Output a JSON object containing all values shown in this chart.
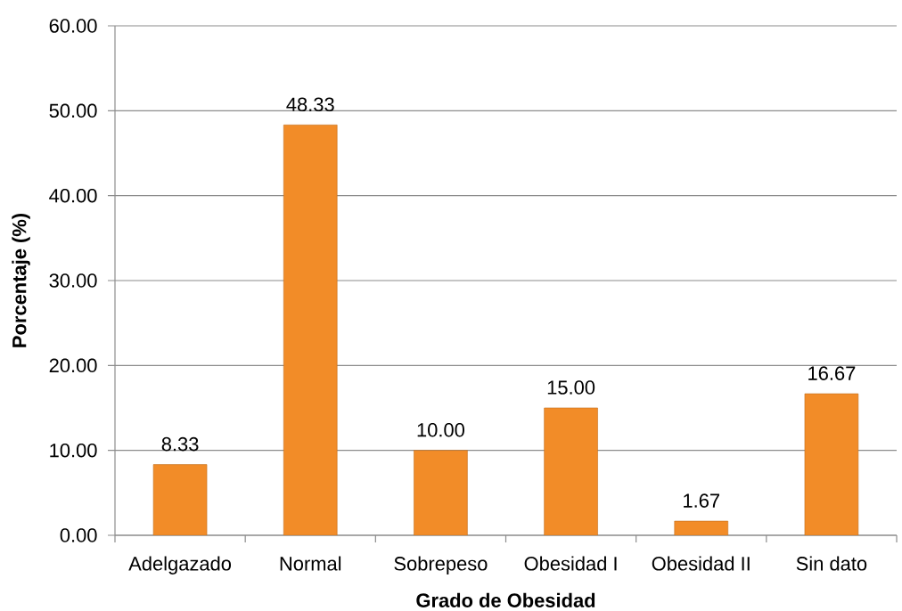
{
  "chart_data": {
    "type": "bar",
    "xlabel": "Grado de Obesidad",
    "ylabel": "Porcentaje (%)",
    "categories": [
      "Adelgazado",
      "Normal",
      "Sobrepeso",
      "Obesidad I",
      "Obesidad II",
      "Sin dato"
    ],
    "values": [
      8.33,
      48.33,
      10.0,
      15.0,
      1.67,
      16.67
    ],
    "value_labels": [
      "8.33",
      "48.33",
      "10.00",
      "15.00",
      "1.67",
      "16.67"
    ],
    "color": "#f28c28",
    "ylim": [
      0,
      60
    ],
    "yticks": [
      {
        "value": 0,
        "label": "0.00"
      },
      {
        "value": 10,
        "label": "10.00"
      },
      {
        "value": 20,
        "label": "20.00"
      },
      {
        "value": 30,
        "label": "30.00"
      },
      {
        "value": 40,
        "label": "40.00"
      },
      {
        "value": 50,
        "label": "50.00"
      },
      {
        "value": 60,
        "label": "60.00"
      }
    ],
    "grid": "y"
  }
}
